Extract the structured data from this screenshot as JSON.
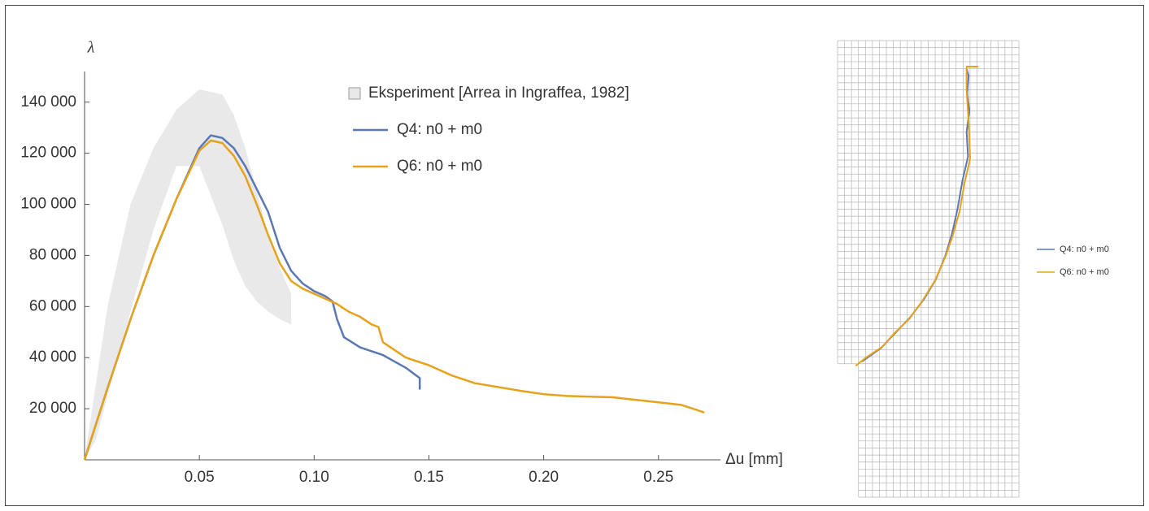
{
  "chart_data": [
    {
      "type": "line",
      "x_label": "Δu [mm]",
      "y_label": "λ",
      "xlim": [
        0,
        0.277
      ],
      "ylim": [
        0,
        152000
      ],
      "xticks": [
        0.05,
        {
          "value": 0.1,
          "label": "0.10"
        },
        0.15,
        {
          "value": 0.2,
          "label": "0.20"
        },
        0.25
      ],
      "yticks": [
        {
          "value": 20000,
          "label": "20 000"
        },
        {
          "value": 40000,
          "label": "40 000"
        },
        {
          "value": 60000,
          "label": "60 000"
        },
        {
          "value": 80000,
          "label": "80 000"
        },
        {
          "value": 100000,
          "label": "100 000"
        },
        {
          "value": 120000,
          "label": "120 000"
        },
        {
          "value": 140000,
          "label": "140 000"
        }
      ],
      "band": {
        "name": "Eksperiment [Arrea in Ingraffea, 1982]",
        "color": "#e9e9e9",
        "x": [
          0,
          0.005,
          0.01,
          0.02,
          0.03,
          0.04,
          0.05,
          0.06,
          0.065,
          0.07,
          0.075,
          0.08,
          0.085,
          0.09
        ],
        "upper": [
          0,
          30000,
          60000,
          100000,
          122000,
          137000,
          145000,
          143000,
          135000,
          122000,
          105000,
          88000,
          75000,
          65000
        ],
        "lower": [
          0,
          8000,
          25000,
          58000,
          90000,
          115000,
          115000,
          92000,
          78000,
          68000,
          62000,
          58000,
          55000,
          53000
        ]
      },
      "series": [
        {
          "name": "Q4: n0 + m0",
          "color": "#5b78b4",
          "x": [
            0,
            0.01,
            0.02,
            0.03,
            0.04,
            0.05,
            0.055,
            0.06,
            0.065,
            0.07,
            0.075,
            0.08,
            0.085,
            0.09,
            0.095,
            0.1,
            0.105,
            0.108,
            0.11,
            0.113,
            0.12,
            0.13,
            0.14,
            0.146,
            0.146
          ],
          "values": [
            0,
            28000,
            55000,
            80000,
            102000,
            122000,
            127000,
            126000,
            122000,
            115000,
            106000,
            97000,
            83000,
            74000,
            69000,
            66000,
            64000,
            62000,
            55000,
            48000,
            44000,
            41000,
            36000,
            32000,
            27500
          ]
        },
        {
          "name": "Q6: n0 + m0",
          "color": "#e6a21c",
          "x": [
            0,
            0.01,
            0.02,
            0.03,
            0.04,
            0.05,
            0.055,
            0.06,
            0.065,
            0.07,
            0.075,
            0.08,
            0.085,
            0.09,
            0.095,
            0.1,
            0.105,
            0.11,
            0.115,
            0.12,
            0.125,
            0.128,
            0.13,
            0.135,
            0.14,
            0.15,
            0.16,
            0.17,
            0.18,
            0.19,
            0.2,
            0.21,
            0.22,
            0.23,
            0.24,
            0.25,
            0.26,
            0.265,
            0.27
          ],
          "values": [
            0,
            28000,
            55000,
            80000,
            102000,
            121000,
            125000,
            124000,
            119000,
            111000,
            100000,
            88000,
            77000,
            70000,
            67000,
            65000,
            63000,
            61000,
            58000,
            56000,
            53000,
            52000,
            46000,
            43000,
            40000,
            37000,
            33000,
            30000,
            28500,
            27000,
            25700,
            25000,
            24700,
            24500,
            23500,
            22500,
            21500,
            20000,
            18500
          ]
        }
      ]
    },
    {
      "type": "path",
      "xlim": [
        0,
        26
      ],
      "ylim": [
        0,
        65
      ],
      "series": [
        {
          "name": "Q4: n0 + m0",
          "color": "#5b78b4",
          "x": [
            3.5,
            6.2,
            8.1,
            10.4,
            12.4,
            14.1,
            15.5,
            16.4,
            17.2,
            17.9,
            18.7,
            18.5,
            18.9,
            18.6,
            18.8,
            18.5
          ],
          "values": [
            19.3,
            21.2,
            23.2,
            25.6,
            28.2,
            31.0,
            34.5,
            37.5,
            41.0,
            45.0,
            48.5,
            52.0,
            55.0,
            57.5,
            60.0,
            61.0
          ]
        },
        {
          "name": "Q6: n0 + m0",
          "color": "#e6a21c",
          "x": [
            2.6,
            4.1,
            6.4,
            8.2,
            10.3,
            12.2,
            14.0,
            15.5,
            16.5,
            17.5,
            18.2,
            19.0,
            18.8,
            18.5,
            18.5,
            20.2
          ],
          "values": [
            18.7,
            19.9,
            21.4,
            23.4,
            25.4,
            28.0,
            30.9,
            34.3,
            37.2,
            40.7,
            44.7,
            48.2,
            53.4,
            58.0,
            61.3,
            61.3
          ]
        }
      ]
    }
  ]
}
